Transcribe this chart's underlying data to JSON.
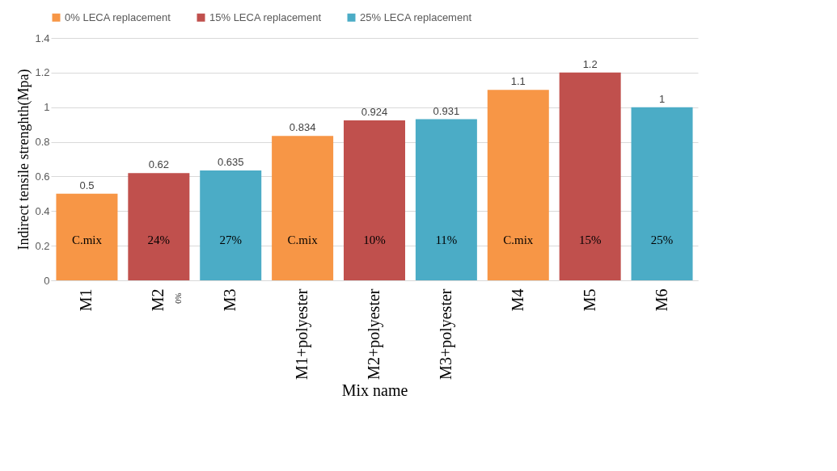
{
  "chart_data": {
    "type": "bar",
    "xlabel": "Mix name",
    "ylabel": "Indirect tensile strenghth(Mpa)",
    "categories": [
      "M1",
      "M2",
      "M3",
      "M1+polyester",
      "M2+polyester",
      "M3+polyester",
      "M4",
      "M5",
      "M6"
    ],
    "series": [
      {
        "name": "0% LECA replacement",
        "color": "#f79646",
        "values": [
          0.5,
          null,
          null,
          0.834,
          null,
          null,
          1.1,
          null,
          null
        ]
      },
      {
        "name": "15% LECA replacement",
        "color": "#c0504d",
        "values": [
          null,
          0.62,
          null,
          null,
          0.924,
          null,
          null,
          1.2,
          null
        ]
      },
      {
        "name": "25% LECA replacement",
        "color": "#4bacc6",
        "values": [
          null,
          null,
          0.635,
          null,
          null,
          0.931,
          null,
          null,
          1
        ]
      }
    ],
    "ylim": [
      0,
      1.4
    ],
    "yticks": [
      0,
      0.2,
      0.4,
      0.6,
      0.8,
      1,
      1.2,
      1.4
    ],
    "grid": "y",
    "legend": "top",
    "data_labels": true,
    "annotations": [
      "C.mix",
      "24%",
      "27%",
      "C.mix",
      "10%",
      "11%",
      "C.mix",
      "15%",
      "25%",
      "0%"
    ]
  }
}
